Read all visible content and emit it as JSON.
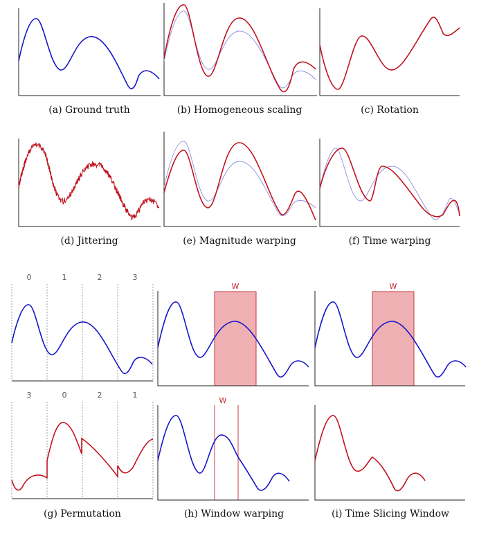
{
  "colors": {
    "blue": "#1616c8",
    "red": "#c0141e",
    "ghost": "#8c8ce0",
    "window_fill": "#efb0b4",
    "window_edge": "#c0282f",
    "axis": "#222222",
    "divider": "#888888"
  },
  "captions": {
    "a": "(a) Ground truth",
    "b": "(b) Homogeneous scaling",
    "c": "(c) Rotation",
    "d": "(d) Jittering",
    "e": "(e) Magnitude warping",
    "f": "(f) Time warping",
    "g": "(g) Permutation",
    "h": "(h) Window warping",
    "i": "(i) Time Slicing Window"
  },
  "permutation": {
    "original_segments": [
      "0",
      "1",
      "2",
      "3"
    ],
    "permuted_segments": [
      "3",
      "0",
      "2",
      "1"
    ]
  },
  "window_label": "W"
}
